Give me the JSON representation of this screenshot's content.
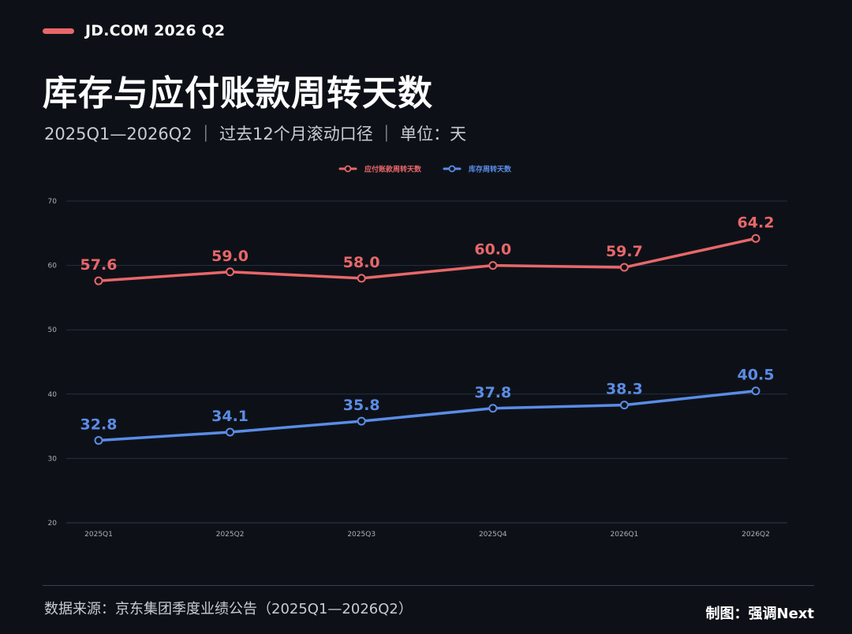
{
  "header": {
    "brand": "JD.COM 2026 Q2",
    "title": "库存与应付账款周转天数",
    "subtitle": "2025Q1—2026Q2 ｜ 过去12个月滚动口径 ｜ 单位：天"
  },
  "chart_data": {
    "type": "line",
    "categories": [
      "2025Q1",
      "2025Q2",
      "2025Q3",
      "2025Q4",
      "2026Q1",
      "2026Q2"
    ],
    "series": [
      {
        "name": "应付账款周转天数",
        "color": "#e8676a",
        "values": [
          57.6,
          59.0,
          58.0,
          60.0,
          59.7,
          64.2
        ],
        "labels": [
          "57.6",
          "59.0",
          "58.0",
          "60.0",
          "59.7",
          "64.2"
        ]
      },
      {
        "name": "库存周转天数",
        "color": "#5b8ce6",
        "values": [
          32.8,
          34.1,
          35.8,
          37.8,
          38.3,
          40.5
        ],
        "labels": [
          "32.8",
          "34.1",
          "35.8",
          "37.8",
          "38.3",
          "40.5"
        ]
      }
    ],
    "ylim": [
      20,
      70
    ],
    "yticks": [
      "20",
      "30",
      "40",
      "50",
      "60",
      "70"
    ],
    "grid": true,
    "legend_position": "top-center",
    "gridline_color": "#243040",
    "axis_color": "#2f3a48",
    "tick_label_color": "#aab0b8"
  },
  "footer": {
    "source": "数据来源：京东集团季度业绩公告（2025Q1—2026Q2）",
    "credit": "制图：强调Next"
  }
}
